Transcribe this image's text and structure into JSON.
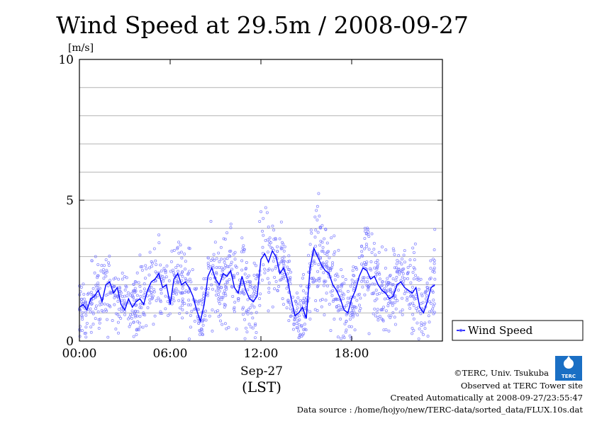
{
  "chart_data": {
    "type": "line",
    "title": "Wind Speed at 29.5m / 2008-09-27",
    "ylabel": "[m/s]",
    "ylim": [
      0,
      10
    ],
    "yticks": [
      "0",
      "5",
      "10"
    ],
    "xlim": [
      0,
      24
    ],
    "xticks": [
      "00:00",
      "06:00",
      "12:00",
      "18:00"
    ],
    "xtick_hours": [
      0,
      6,
      12,
      18
    ],
    "xlabel_date": "Sep-27",
    "xlabel_tz": "(LST)",
    "grid": true,
    "legend": {
      "position": "right",
      "label": "Wind Speed"
    },
    "series": [
      {
        "name": "Wind Speed",
        "color": "#0000ff",
        "scatter_color": "#7b7bff",
        "x_hours": [
          0.0,
          0.25,
          0.5,
          0.75,
          1.0,
          1.25,
          1.5,
          1.75,
          2.0,
          2.25,
          2.5,
          2.75,
          3.0,
          3.25,
          3.5,
          3.75,
          4.0,
          4.25,
          4.5,
          4.75,
          5.0,
          5.25,
          5.5,
          5.75,
          6.0,
          6.25,
          6.5,
          6.75,
          7.0,
          7.25,
          7.5,
          7.75,
          8.0,
          8.25,
          8.5,
          8.75,
          9.0,
          9.25,
          9.5,
          9.75,
          10.0,
          10.25,
          10.5,
          10.75,
          11.0,
          11.25,
          11.5,
          11.75,
          12.0,
          12.25,
          12.5,
          12.75,
          13.0,
          13.25,
          13.5,
          13.75,
          14.0,
          14.25,
          14.5,
          14.75,
          15.0,
          15.25,
          15.5,
          15.75,
          16.0,
          16.25,
          16.5,
          16.75,
          17.0,
          17.25,
          17.5,
          17.75,
          18.0,
          18.25,
          18.5,
          18.75,
          19.0,
          19.25,
          19.5,
          19.75,
          20.0,
          20.25,
          20.5,
          20.75,
          21.0,
          21.25,
          21.5,
          21.75,
          22.0,
          22.25,
          22.5,
          22.75,
          23.0,
          23.25,
          23.5
        ],
        "values": [
          1.2,
          1.3,
          1.1,
          1.5,
          1.6,
          1.8,
          1.4,
          2.0,
          2.1,
          1.7,
          1.9,
          1.3,
          1.1,
          1.5,
          1.2,
          1.4,
          1.5,
          1.3,
          1.8,
          2.1,
          2.2,
          2.4,
          1.9,
          2.0,
          1.3,
          2.2,
          2.4,
          2.0,
          2.1,
          1.9,
          1.6,
          1.1,
          0.7,
          1.3,
          2.3,
          2.6,
          2.2,
          2.0,
          2.4,
          2.3,
          2.5,
          1.9,
          1.7,
          2.3,
          1.8,
          1.5,
          1.4,
          1.6,
          2.9,
          3.1,
          2.8,
          3.2,
          3.0,
          2.4,
          2.6,
          2.2,
          1.5,
          0.9,
          1.0,
          1.2,
          0.8,
          2.6,
          3.3,
          3.0,
          2.7,
          2.5,
          2.4,
          2.0,
          1.8,
          1.5,
          1.1,
          1.0,
          1.5,
          1.8,
          2.3,
          2.6,
          2.5,
          2.2,
          2.3,
          2.0,
          1.8,
          1.7,
          1.5,
          1.6,
          2.0,
          2.1,
          1.9,
          1.8,
          1.7,
          1.9,
          1.2,
          1.0,
          1.4,
          1.9,
          2.0
        ]
      }
    ]
  },
  "credits": {
    "copyright": "©TERC, Univ. Tsukuba",
    "observed": "Observed at TERC Tower site",
    "created": "Created Automatically at 2008-09-27/23:55:47",
    "source": "Data source : /home/hojyo/new/TERC-data/sorted_data/FLUX.10s.dat"
  },
  "logo": {
    "text": "TERC",
    "color": "#1a6fc4"
  }
}
